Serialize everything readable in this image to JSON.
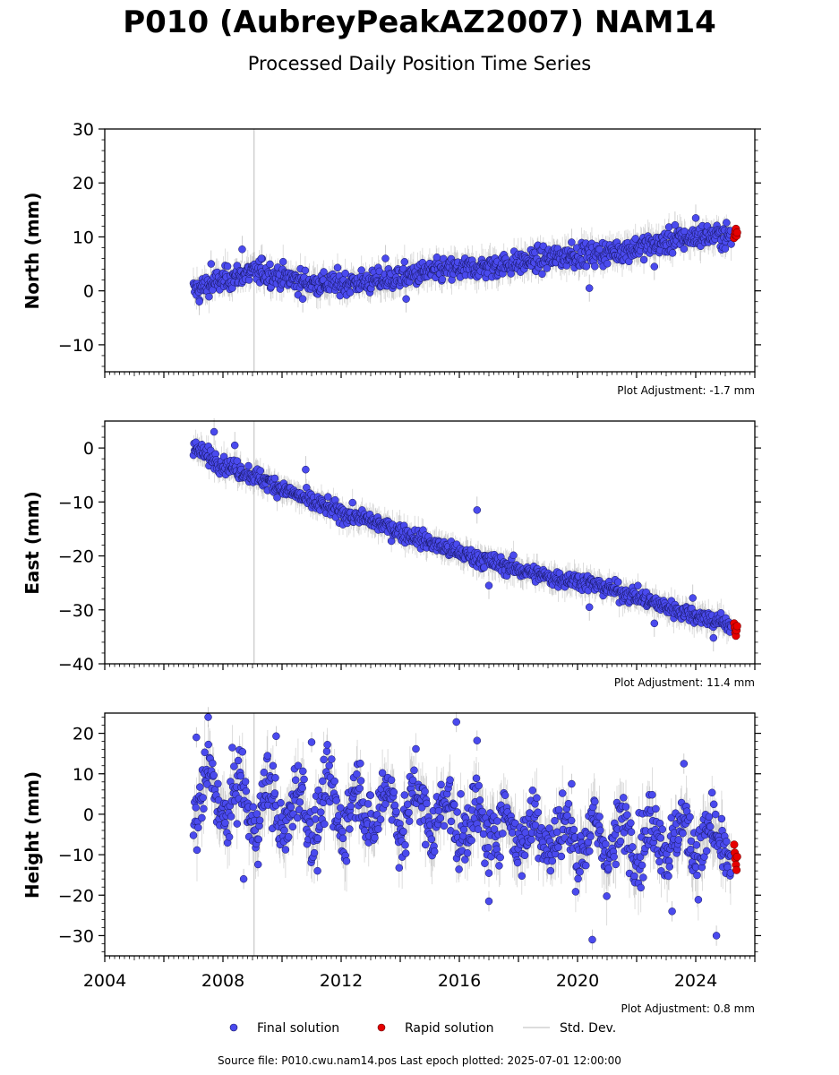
{
  "page": {
    "title": "P010 (AubreyPeakAZ2007) NAM14",
    "subtitle": "Processed Daily Position Time Series",
    "source_note": "Source file: P010.cwu.nam14.pos  Last epoch plotted: 2025-07-01 12:00:00"
  },
  "colors": {
    "final": "#4a4aee",
    "final_edge": "#14145a",
    "rapid": "#e60000",
    "rapid_edge": "#5a0000",
    "stddev": "#888888",
    "marker_line": "#d0d0d0"
  },
  "legend": {
    "final": "Final solution",
    "rapid": "Rapid solution",
    "std": "Std. Dev."
  },
  "chart_data": [
    {
      "type": "scatter",
      "ylabel": "North (mm)",
      "adjustment": "Plot Adjustment: -1.7 mm",
      "xlim": [
        2004,
        2026
      ],
      "ylim": [
        -15,
        30
      ],
      "yticks": [
        -10,
        0,
        10,
        20,
        30
      ],
      "ytick_labels": [
        "−10",
        "0",
        "10",
        "20",
        "30"
      ],
      "vertical_line_x": 2009.05,
      "series": [
        {
          "role": "final",
          "x": [
            2007.0,
            2007.5,
            2008.0,
            2008.5,
            2009.0,
            2009.5,
            2010.0,
            2010.5,
            2011.0,
            2011.5,
            2012.0,
            2012.5,
            2013.0,
            2013.5,
            2014.0,
            2014.5,
            2015.0,
            2015.5,
            2016.0,
            2016.5,
            2017.0,
            2017.5,
            2018.0,
            2018.5,
            2019.0,
            2019.5,
            2020.0,
            2020.5,
            2021.0,
            2021.5,
            2022.0,
            2022.5,
            2023.0,
            2023.5,
            2024.0,
            2024.5,
            2025.0,
            2025.2
          ],
          "y": [
            0.0,
            1.0,
            2.0,
            2.8,
            3.5,
            3.2,
            2.5,
            2.0,
            1.5,
            1.3,
            1.4,
            1.5,
            1.7,
            2.0,
            2.5,
            3.0,
            3.5,
            3.8,
            4.0,
            4.2,
            4.5,
            4.8,
            5.2,
            5.6,
            6.0,
            6.4,
            6.6,
            6.8,
            7.0,
            7.5,
            8.0,
            8.5,
            9.0,
            9.5,
            10.0,
            10.3,
            10.2,
            10.0
          ],
          "outliers": [
            [
              2007.2,
              -2.0
            ],
            [
              2007.6,
              5.0
            ],
            [
              2008.65,
              7.7
            ],
            [
              2009.3,
              6.0
            ],
            [
              2010.7,
              -1.5
            ],
            [
              2013.5,
              6.0
            ],
            [
              2014.2,
              -1.5
            ],
            [
              2019.8,
              9.0
            ],
            [
              2020.4,
              0.5
            ],
            [
              2022.6,
              4.5
            ],
            [
              2024.0,
              13.5
            ],
            [
              2023.3,
              12.2
            ]
          ]
        },
        {
          "role": "rapid",
          "x": [
            2025.3,
            2025.32,
            2025.34,
            2025.36,
            2025.38,
            2025.4
          ],
          "y": [
            9.8,
            10.4,
            11.0,
            11.5,
            10.2,
            10.8
          ]
        }
      ]
    },
    {
      "type": "scatter",
      "ylabel": "East (mm)",
      "adjustment": "Plot Adjustment: 11.4 mm",
      "xlim": [
        2004,
        2026
      ],
      "ylim": [
        -40,
        5
      ],
      "yticks": [
        -40,
        -30,
        -20,
        -10,
        0
      ],
      "ytick_labels": [
        "−40",
        "−30",
        "−20",
        "−10",
        "0"
      ],
      "vertical_line_x": 2009.05,
      "series": [
        {
          "role": "final",
          "x": [
            2007.0,
            2008.0,
            2009.0,
            2010.0,
            2011.0,
            2012.0,
            2013.0,
            2014.0,
            2015.0,
            2016.0,
            2017.0,
            2018.0,
            2019.0,
            2020.0,
            2021.0,
            2022.0,
            2023.0,
            2024.0,
            2025.0,
            2025.2
          ],
          "y": [
            0.0,
            -3.0,
            -5.0,
            -7.5,
            -10.0,
            -12.0,
            -13.5,
            -15.5,
            -17.5,
            -19.5,
            -21.0,
            -22.5,
            -24.0,
            -24.5,
            -26.0,
            -27.5,
            -29.5,
            -31.0,
            -32.5,
            -33.0
          ],
          "outliers": [
            [
              2007.7,
              3.0
            ],
            [
              2008.4,
              0.5
            ],
            [
              2010.8,
              -4.0
            ],
            [
              2016.6,
              -11.5
            ],
            [
              2017.0,
              -25.5
            ],
            [
              2020.4,
              -29.5
            ],
            [
              2022.6,
              -32.5
            ],
            [
              2024.6,
              -35.2
            ],
            [
              2023.9,
              -27.8
            ]
          ]
        },
        {
          "role": "rapid",
          "x": [
            2025.3,
            2025.32,
            2025.34,
            2025.36,
            2025.38,
            2025.4
          ],
          "y": [
            -32.5,
            -33.3,
            -34.2,
            -34.8,
            -33.8,
            -33.0
          ]
        }
      ]
    },
    {
      "type": "scatter",
      "ylabel": "Height (mm)",
      "adjustment": "Plot Adjustment: 0.8 mm",
      "xlim": [
        2004,
        2026
      ],
      "ylim": [
        -35,
        25
      ],
      "yticks": [
        -30,
        -20,
        -10,
        0,
        10,
        20
      ],
      "ytick_labels": [
        "−30",
        "−20",
        "−10",
        "0",
        "10",
        "20"
      ],
      "xticks": [
        2004,
        2008,
        2012,
        2016,
        2020,
        2024
      ],
      "xtick_labels": [
        "2004",
        "2008",
        "2012",
        "2016",
        "2020",
        "2024"
      ],
      "vertical_line_x": 2009.05,
      "series": [
        {
          "role": "final",
          "x": [
            2007.0,
            2008.0,
            2009.0,
            2010.0,
            2011.0,
            2012.0,
            2013.0,
            2014.0,
            2015.0,
            2016.0,
            2017.0,
            2018.0,
            2019.0,
            2020.0,
            2021.0,
            2022.0,
            2023.0,
            2024.0,
            2025.0,
            2025.2
          ],
          "y": [
            5.0,
            4.0,
            2.0,
            1.0,
            1.0,
            1.5,
            1.5,
            1.5,
            1.0,
            -2.0,
            -3.0,
            -3.5,
            -5.0,
            -6.0,
            -6.5,
            -5.5,
            -5.5,
            -6.0,
            -8.0,
            -9.0
          ],
          "outliers": [
            [
              2007.5,
              24.0
            ],
            [
              2007.1,
              19.0
            ],
            [
              2009.8,
              19.3
            ],
            [
              2011.0,
              17.8
            ],
            [
              2015.9,
              22.8
            ],
            [
              2016.6,
              18.2
            ],
            [
              2008.7,
              -16.0
            ],
            [
              2011.2,
              -14.0
            ],
            [
              2017.0,
              -21.5
            ],
            [
              2020.5,
              -31.0
            ],
            [
              2023.2,
              -24.0
            ],
            [
              2024.7,
              -30.0
            ],
            [
              2023.6,
              12.5
            ],
            [
              2019.8,
              7.5
            ]
          ]
        },
        {
          "role": "rapid",
          "x": [
            2025.3,
            2025.32,
            2025.34,
            2025.36,
            2025.38,
            2025.4
          ],
          "y": [
            -7.5,
            -9.5,
            -11.0,
            -12.5,
            -13.8,
            -10.5
          ]
        }
      ]
    }
  ]
}
